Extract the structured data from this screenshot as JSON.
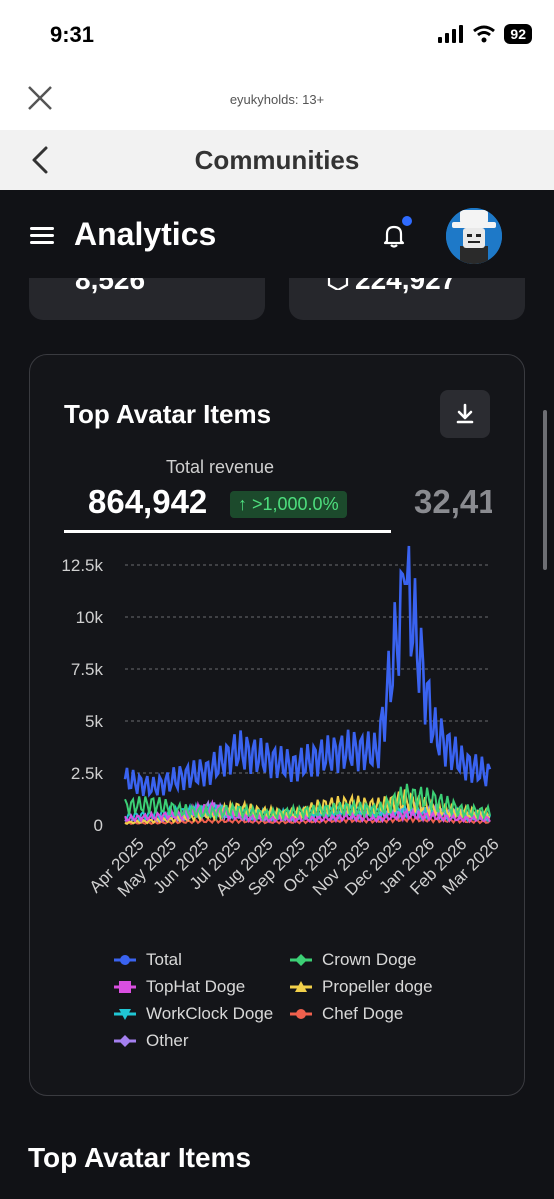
{
  "status": {
    "time": "9:31",
    "battery": "92"
  },
  "browser": {
    "site": "eyukyholds: 13+"
  },
  "nav": {
    "title": "Communities"
  },
  "header": {
    "title": "Analytics"
  },
  "stats": {
    "left_value": "8,526",
    "right_value": "224,927"
  },
  "card": {
    "title": "Top Avatar Items",
    "metric_label": "Total revenue",
    "metric_value": "864,942",
    "metric_change": "↑ >1,000.0%",
    "metric_value_next": "32,41"
  },
  "colors": {
    "total": "#3a63f0",
    "crown": "#3ccf75",
    "tophat": "#d94fe0",
    "propeller": "#f2d04a",
    "workclock": "#20c6d4",
    "chef": "#f0604d",
    "other": "#a580f0"
  },
  "chart_data": {
    "type": "line",
    "y_ticks": [
      "12.5k",
      "10k",
      "7.5k",
      "5k",
      "2.5k",
      "0"
    ],
    "ylim": [
      0,
      12500
    ],
    "x_ticks": [
      "Apr 2025",
      "May 2025",
      "Jun 2025",
      "Jul 2025",
      "Aug 2025",
      "Sep 2025",
      "Oct 2025",
      "Nov 2025",
      "Dec 2025",
      "Jan 2026",
      "Feb 2026",
      "Mar 2026"
    ],
    "legend": [
      "Total",
      "Crown Doge",
      "TopHat Doge",
      "Propeller doge",
      "WorkClock Doge",
      "Chef Doge",
      "Other"
    ],
    "series": [
      {
        "name": "Total",
        "values": [
          2200,
          1800,
          2300,
          2600,
          3600,
          3200,
          2800,
          3300,
          3600,
          3500,
          11600,
          4500,
          3000,
          2400
        ]
      },
      {
        "name": "Crown Doge",
        "values": [
          900,
          1000,
          700,
          600,
          700,
          500,
          600,
          700,
          800,
          700,
          1400,
          1200,
          700,
          600
        ]
      },
      {
        "name": "TopHat Doge",
        "values": [
          300,
          400,
          500,
          800,
          400,
          300,
          300,
          300,
          400,
          300,
          500,
          400,
          300,
          300
        ]
      },
      {
        "name": "Propeller doge",
        "values": [
          100,
          200,
          300,
          500,
          800,
          600,
          500,
          900,
          1000,
          900,
          1200,
          800,
          600,
          500
        ]
      },
      {
        "name": "WorkClock Doge",
        "values": [
          400,
          500,
          600,
          700,
          600,
          500,
          500,
          600,
          700,
          600,
          700,
          600,
          500,
          400
        ]
      },
      {
        "name": "Chef Doge",
        "values": [
          100,
          100,
          150,
          200,
          200,
          150,
          150,
          200,
          250,
          200,
          300,
          250,
          200,
          150
        ]
      },
      {
        "name": "Other",
        "values": [
          200,
          300,
          400,
          800,
          500,
          400,
          400,
          500,
          600,
          500,
          700,
          600,
          500,
          400
        ]
      }
    ]
  },
  "section": {
    "title": "Top Avatar Items"
  }
}
